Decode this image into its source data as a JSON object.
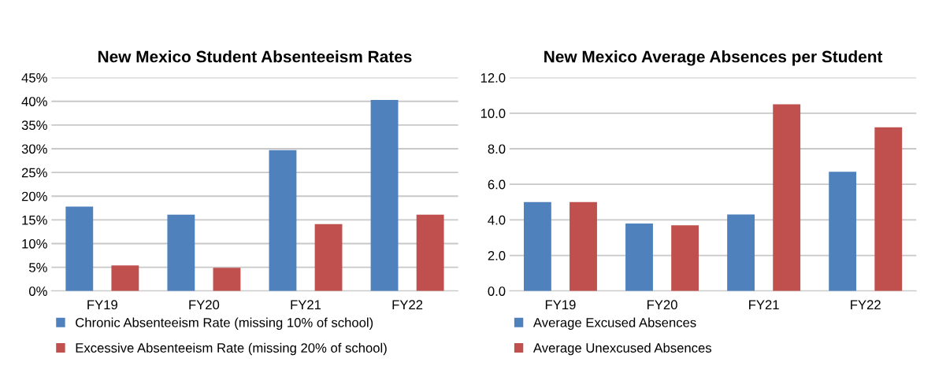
{
  "chart_data": [
    {
      "type": "bar",
      "title": "New Mexico Student Absenteeism Rates",
      "categories": [
        "FY19",
        "FY20",
        "FY21",
        "FY22"
      ],
      "series": [
        {
          "name": "Chronic Absenteeism Rate (missing 10% of school)",
          "color": "#4f81bd",
          "values": [
            17.8,
            16.1,
            29.7,
            40.3
          ]
        },
        {
          "name": "Excessive Absenteeism Rate (missing 20% of school)",
          "color": "#c0504d",
          "values": [
            5.4,
            4.9,
            14.1,
            16.1
          ]
        }
      ],
      "ylim": [
        0,
        45
      ],
      "yticks": [
        {
          "value": 0,
          "label": "0%"
        },
        {
          "value": 5,
          "label": "5%"
        },
        {
          "value": 10,
          "label": "10%"
        },
        {
          "value": 15,
          "label": "15%"
        },
        {
          "value": 20,
          "label": "20%"
        },
        {
          "value": 25,
          "label": "25%"
        },
        {
          "value": 30,
          "label": "30%"
        },
        {
          "value": 35,
          "label": "35%"
        },
        {
          "value": 40,
          "label": "40%"
        },
        {
          "value": 45,
          "label": "45%"
        }
      ],
      "grid": "y",
      "legend": "bottom"
    },
    {
      "type": "bar",
      "title": "New Mexico Average Absences per Student",
      "categories": [
        "FY19",
        "FY20",
        "FY21",
        "FY22"
      ],
      "series": [
        {
          "name": "Average Excused Absences",
          "color": "#4f81bd",
          "values": [
            5.0,
            3.8,
            4.3,
            6.7
          ]
        },
        {
          "name": "Average Unexcused Absences",
          "color": "#c0504d",
          "values": [
            5.0,
            3.7,
            10.5,
            9.2
          ]
        }
      ],
      "ylim": [
        0,
        12
      ],
      "yticks": [
        {
          "value": 0,
          "label": "0.0"
        },
        {
          "value": 2,
          "label": "2.0"
        },
        {
          "value": 4,
          "label": "4.0"
        },
        {
          "value": 6,
          "label": "6.0"
        },
        {
          "value": 8,
          "label": "8.0"
        },
        {
          "value": 10,
          "label": "10.0"
        },
        {
          "value": 12,
          "label": "12.0"
        }
      ],
      "grid": "y",
      "legend": "bottom"
    }
  ]
}
